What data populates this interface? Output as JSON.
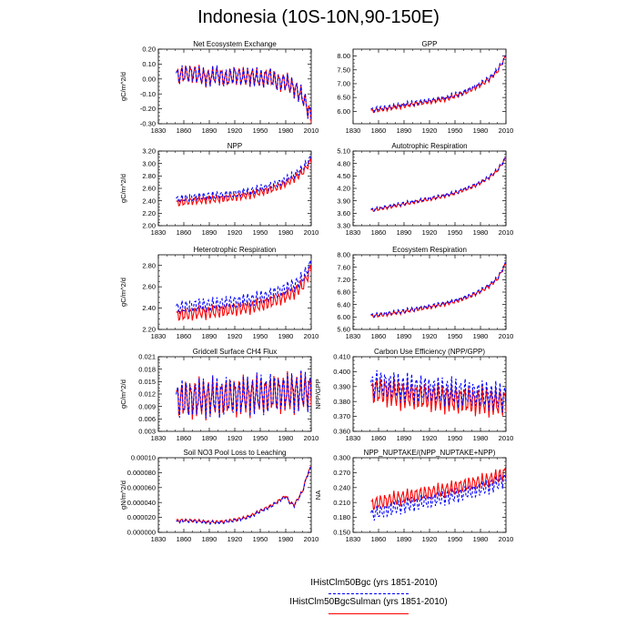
{
  "title": "Indonesia (10S-10N,90-150E)",
  "legend": {
    "items": [
      {
        "label": "IHistClm50Bgc (yrs 1851-2010)",
        "color": "#0000ff",
        "dash": true
      },
      {
        "label": "IHistClm50BgcSulman (yrs 1851-2010)",
        "color": "#ff0000",
        "dash": false
      }
    ]
  },
  "chart_data": [
    {
      "type": "line",
      "title": "Net Ecosystem Exchange",
      "ylabel": "gC/m^2/d",
      "ylim": [
        -0.3,
        0.2
      ],
      "yticks": [
        "-0.30",
        "-0.20",
        "-0.10",
        "0.00",
        "0.10",
        "0.20"
      ],
      "xlim": [
        1830,
        2010
      ],
      "xticks": [
        "1830",
        "1860",
        "1890",
        "1920",
        "1950",
        "1980",
        "2010"
      ],
      "x": [
        1851,
        1860,
        1870,
        1880,
        1890,
        1900,
        1910,
        1920,
        1930,
        1940,
        1950,
        1960,
        1970,
        1980,
        1990,
        2000,
        2010
      ],
      "series": [
        {
          "color": "#0000ff",
          "dash": true,
          "values": [
            0.02,
            0.03,
            0.04,
            0.02,
            0.01,
            0.03,
            0.0,
            0.03,
            0.01,
            0.02,
            0.0,
            0.02,
            -0.02,
            -0.02,
            -0.06,
            -0.12,
            -0.25
          ]
        },
        {
          "color": "#ff0000",
          "dash": false,
          "values": [
            0.02,
            0.03,
            0.04,
            0.02,
            0.01,
            0.03,
            0.0,
            0.03,
            0.01,
            0.02,
            0.0,
            0.02,
            -0.02,
            -0.02,
            -0.06,
            -0.12,
            -0.25
          ]
        }
      ],
      "amp": 0.06
    },
    {
      "type": "line",
      "title": "GPP",
      "ylabel": "",
      "ylim": [
        5.55,
        8.25
      ],
      "yticks": [
        "6.00",
        "6.50",
        "7.00",
        "7.50",
        "8.00"
      ],
      "xlim": [
        1830,
        2010
      ],
      "xticks": [
        "1830",
        "1860",
        "1890",
        "1920",
        "1950",
        "1980",
        "2010"
      ],
      "x": [
        1851,
        1860,
        1870,
        1880,
        1890,
        1900,
        1910,
        1920,
        1930,
        1940,
        1950,
        1960,
        1970,
        1980,
        1990,
        2000,
        2010
      ],
      "series": [
        {
          "color": "#0000ff",
          "dash": true,
          "values": [
            6.05,
            6.1,
            6.15,
            6.2,
            6.25,
            6.3,
            6.35,
            6.4,
            6.45,
            6.5,
            6.6,
            6.7,
            6.85,
            7.0,
            7.2,
            7.5,
            8.0
          ]
        },
        {
          "color": "#ff0000",
          "dash": false,
          "values": [
            6.0,
            6.05,
            6.1,
            6.15,
            6.2,
            6.25,
            6.3,
            6.35,
            6.4,
            6.45,
            6.55,
            6.65,
            6.8,
            6.95,
            7.15,
            7.45,
            8.0
          ]
        }
      ],
      "amp": 0.08
    },
    {
      "type": "line",
      "title": "NPP",
      "ylabel": "gC/m^2/d",
      "ylim": [
        2.0,
        3.2
      ],
      "yticks": [
        "2.00",
        "2.20",
        "2.40",
        "2.60",
        "2.80",
        "3.00",
        "3.20"
      ],
      "xlim": [
        1830,
        2010
      ],
      "xticks": [
        "1830",
        "1860",
        "1890",
        "1920",
        "1950",
        "1980",
        "2010"
      ],
      "x": [
        1851,
        1860,
        1870,
        1880,
        1890,
        1900,
        1910,
        1920,
        1930,
        1940,
        1950,
        1960,
        1970,
        1980,
        1990,
        2000,
        2010
      ],
      "series": [
        {
          "color": "#0000ff",
          "dash": true,
          "values": [
            2.42,
            2.44,
            2.46,
            2.47,
            2.48,
            2.49,
            2.5,
            2.52,
            2.54,
            2.56,
            2.6,
            2.63,
            2.68,
            2.74,
            2.82,
            2.92,
            3.1
          ]
        },
        {
          "color": "#ff0000",
          "dash": false,
          "values": [
            2.36,
            2.38,
            2.4,
            2.41,
            2.42,
            2.43,
            2.44,
            2.46,
            2.48,
            2.5,
            2.54,
            2.57,
            2.62,
            2.68,
            2.76,
            2.86,
            3.05
          ]
        }
      ],
      "amp": 0.06
    },
    {
      "type": "line",
      "title": "Autotrophic Respiration",
      "ylabel": "",
      "ylim": [
        3.3,
        5.1
      ],
      "yticks": [
        "3.30",
        "3.60",
        "3.90",
        "4.20",
        "4.50",
        "4.80",
        "5.10"
      ],
      "xlim": [
        1830,
        2010
      ],
      "xticks": [
        "1830",
        "1860",
        "1890",
        "1920",
        "1950",
        "1980",
        "2010"
      ],
      "x": [
        1851,
        1860,
        1870,
        1880,
        1890,
        1900,
        1910,
        1920,
        1930,
        1940,
        1950,
        1960,
        1970,
        1980,
        1990,
        2000,
        2010
      ],
      "series": [
        {
          "color": "#0000ff",
          "dash": true,
          "values": [
            3.68,
            3.72,
            3.76,
            3.8,
            3.84,
            3.88,
            3.92,
            3.96,
            4.0,
            4.05,
            4.1,
            4.18,
            4.25,
            4.35,
            4.48,
            4.65,
            4.95
          ]
        },
        {
          "color": "#ff0000",
          "dash": false,
          "values": [
            3.66,
            3.7,
            3.74,
            3.78,
            3.82,
            3.86,
            3.9,
            3.94,
            3.98,
            4.03,
            4.08,
            4.16,
            4.23,
            4.33,
            4.46,
            4.63,
            4.93
          ]
        }
      ],
      "amp": 0.04
    },
    {
      "type": "line",
      "title": "Heterotrophic Respiration",
      "ylabel": "gC/m^2/d",
      "ylim": [
        2.2,
        2.9
      ],
      "yticks": [
        "2.20",
        "2.40",
        "2.60",
        "2.80"
      ],
      "xlim": [
        1830,
        2010
      ],
      "xticks": [
        "1830",
        "1860",
        "1890",
        "1920",
        "1950",
        "1980",
        "2010"
      ],
      "x": [
        1851,
        1860,
        1870,
        1880,
        1890,
        1900,
        1910,
        1920,
        1930,
        1940,
        1950,
        1960,
        1970,
        1980,
        1990,
        2000,
        2010
      ],
      "series": [
        {
          "color": "#0000ff",
          "dash": true,
          "values": [
            2.4,
            2.41,
            2.42,
            2.43,
            2.43,
            2.44,
            2.45,
            2.46,
            2.47,
            2.48,
            2.5,
            2.52,
            2.55,
            2.58,
            2.62,
            2.68,
            2.82
          ]
        },
        {
          "color": "#ff0000",
          "dash": false,
          "values": [
            2.33,
            2.34,
            2.35,
            2.36,
            2.36,
            2.37,
            2.38,
            2.39,
            2.4,
            2.41,
            2.43,
            2.45,
            2.48,
            2.51,
            2.55,
            2.61,
            2.78
          ]
        }
      ],
      "amp": 0.06
    },
    {
      "type": "line",
      "title": "Ecosystem Respiration",
      "ylabel": "",
      "ylim": [
        5.6,
        8.0
      ],
      "yticks": [
        "5.60",
        "6.00",
        "6.40",
        "6.80",
        "7.20",
        "7.60",
        "8.00"
      ],
      "xlim": [
        1830,
        2010
      ],
      "xticks": [
        "1830",
        "1860",
        "1890",
        "1920",
        "1950",
        "1980",
        "2010"
      ],
      "x": [
        1851,
        1860,
        1870,
        1880,
        1890,
        1900,
        1910,
        1920,
        1930,
        1940,
        1950,
        1960,
        1970,
        1980,
        1990,
        2000,
        2010
      ],
      "series": [
        {
          "color": "#0000ff",
          "dash": true,
          "values": [
            6.05,
            6.08,
            6.12,
            6.16,
            6.2,
            6.25,
            6.3,
            6.35,
            6.4,
            6.46,
            6.53,
            6.62,
            6.72,
            6.85,
            7.02,
            7.25,
            7.75
          ]
        },
        {
          "color": "#ff0000",
          "dash": false,
          "values": [
            6.02,
            6.05,
            6.09,
            6.13,
            6.17,
            6.22,
            6.27,
            6.32,
            6.37,
            6.43,
            6.5,
            6.59,
            6.69,
            6.82,
            6.99,
            7.22,
            7.72
          ]
        }
      ],
      "amp": 0.06
    },
    {
      "type": "line",
      "title": "Gridcell Surface CH4 Flux",
      "ylabel": "gC/m^2/d",
      "ylim": [
        0.003,
        0.021
      ],
      "yticks": [
        "0.003",
        "0.006",
        "0.009",
        "0.012",
        "0.015",
        "0.018",
        "0.021"
      ],
      "xlim": [
        1830,
        2010
      ],
      "xticks": [
        "1830",
        "1860",
        "1890",
        "1920",
        "1950",
        "1980",
        "2010"
      ],
      "x": [
        1851,
        1860,
        1870,
        1880,
        1890,
        1900,
        1910,
        1920,
        1930,
        1940,
        1950,
        1960,
        1970,
        1980,
        1990,
        2000,
        2010
      ],
      "series": [
        {
          "color": "#0000ff",
          "dash": true,
          "values": [
            0.0105,
            0.0108,
            0.011,
            0.0112,
            0.0112,
            0.0113,
            0.0114,
            0.0115,
            0.0116,
            0.0118,
            0.012,
            0.0121,
            0.0123,
            0.0124,
            0.0125,
            0.0126,
            0.0128
          ]
        },
        {
          "color": "#ff0000",
          "dash": false,
          "values": [
            0.0103,
            0.0106,
            0.0108,
            0.011,
            0.011,
            0.0111,
            0.0112,
            0.0113,
            0.0114,
            0.0116,
            0.0118,
            0.0119,
            0.0121,
            0.0122,
            0.0123,
            0.0124,
            0.0126
          ]
        }
      ],
      "amp": 0.0045
    },
    {
      "type": "line",
      "title": "Carbon Use Efficiency (NPP/GPP)",
      "ylabel": "NPP/GPP",
      "ylim": [
        0.36,
        0.41
      ],
      "yticks": [
        "0.360",
        "0.370",
        "0.380",
        "0.390",
        "0.400",
        "0.410"
      ],
      "xlim": [
        1830,
        2010
      ],
      "xticks": [
        "1830",
        "1860",
        "1890",
        "1920",
        "1950",
        "1980",
        "2010"
      ],
      "x": [
        1851,
        1860,
        1870,
        1880,
        1890,
        1900,
        1910,
        1920,
        1930,
        1940,
        1950,
        1960,
        1970,
        1980,
        1990,
        2000,
        2010
      ],
      "series": [
        {
          "color": "#0000ff",
          "dash": true,
          "values": [
            0.39,
            0.392,
            0.391,
            0.39,
            0.389,
            0.389,
            0.388,
            0.388,
            0.387,
            0.387,
            0.386,
            0.386,
            0.385,
            0.385,
            0.384,
            0.383,
            0.383
          ]
        },
        {
          "color": "#ff0000",
          "dash": false,
          "values": [
            0.386,
            0.387,
            0.386,
            0.385,
            0.384,
            0.384,
            0.383,
            0.383,
            0.382,
            0.382,
            0.381,
            0.381,
            0.38,
            0.38,
            0.38,
            0.379,
            0.38
          ]
        }
      ],
      "amp": 0.009
    },
    {
      "type": "line",
      "title": "Soil NO3 Pool Loss to Leaching",
      "ylabel": "gN/m^2/d",
      "ylim": [
        0.0,
        0.0001
      ],
      "yticks": [
        "0.000000",
        "0.000020",
        "0.000040",
        "0.000060",
        "0.000080",
        "0.00010"
      ],
      "xlim": [
        1830,
        2010
      ],
      "xticks": [
        "1830",
        "1860",
        "1890",
        "1920",
        "1950",
        "1980",
        "2010"
      ],
      "x": [
        1851,
        1860,
        1870,
        1880,
        1890,
        1900,
        1910,
        1920,
        1930,
        1940,
        1950,
        1960,
        1970,
        1980,
        1985,
        1990,
        2000,
        2005,
        2010
      ],
      "series": [
        {
          "color": "#0000ff",
          "dash": true,
          "values": [
            1.4e-05,
            1.5e-05,
            1.5e-05,
            1.4e-05,
            1.3e-05,
            1.3e-05,
            1.4e-05,
            1.6e-05,
            1.8e-05,
            2.2e-05,
            2.8e-05,
            3.3e-05,
            4e-05,
            4.8e-05,
            3.9e-05,
            3.6e-05,
            5.5e-05,
            7.5e-05,
            8.8e-05
          ]
        },
        {
          "color": "#ff0000",
          "dash": false,
          "values": [
            1.6e-05,
            1.6e-05,
            1.6e-05,
            1.5e-05,
            1.4e-05,
            1.4e-05,
            1.5e-05,
            1.7e-05,
            1.9e-05,
            2.3e-05,
            2.9e-05,
            3.4e-05,
            4.1e-05,
            4.9e-05,
            4e-05,
            3.7e-05,
            5.6e-05,
            7.6e-05,
            8.9e-05
          ]
        }
      ],
      "amp": 2e-06
    },
    {
      "type": "line",
      "title": "NPP_NUPTAKE/(NPP_NUPTAKE+NPP)",
      "ylabel": "NA",
      "ylim": [
        0.15,
        0.3
      ],
      "yticks": [
        "0.150",
        "0.180",
        "0.210",
        "0.240",
        "0.270",
        "0.300"
      ],
      "xlim": [
        1830,
        2010
      ],
      "xticks": [
        "1830",
        "1860",
        "1890",
        "1920",
        "1950",
        "1980",
        "2010"
      ],
      "x": [
        1851,
        1860,
        1870,
        1880,
        1890,
        1900,
        1910,
        1920,
        1930,
        1940,
        1950,
        1960,
        1970,
        1980,
        1990,
        2000,
        2010
      ],
      "series": [
        {
          "color": "#0000ff",
          "dash": true,
          "values": [
            0.185,
            0.19,
            0.195,
            0.2,
            0.203,
            0.207,
            0.21,
            0.213,
            0.217,
            0.22,
            0.224,
            0.228,
            0.232,
            0.237,
            0.242,
            0.248,
            0.258
          ]
        },
        {
          "color": "#ff0000",
          "dash": false,
          "values": [
            0.205,
            0.21,
            0.214,
            0.218,
            0.221,
            0.224,
            0.227,
            0.23,
            0.233,
            0.236,
            0.24,
            0.244,
            0.248,
            0.252,
            0.256,
            0.262,
            0.27
          ]
        }
      ],
      "amp": 0.014
    }
  ]
}
